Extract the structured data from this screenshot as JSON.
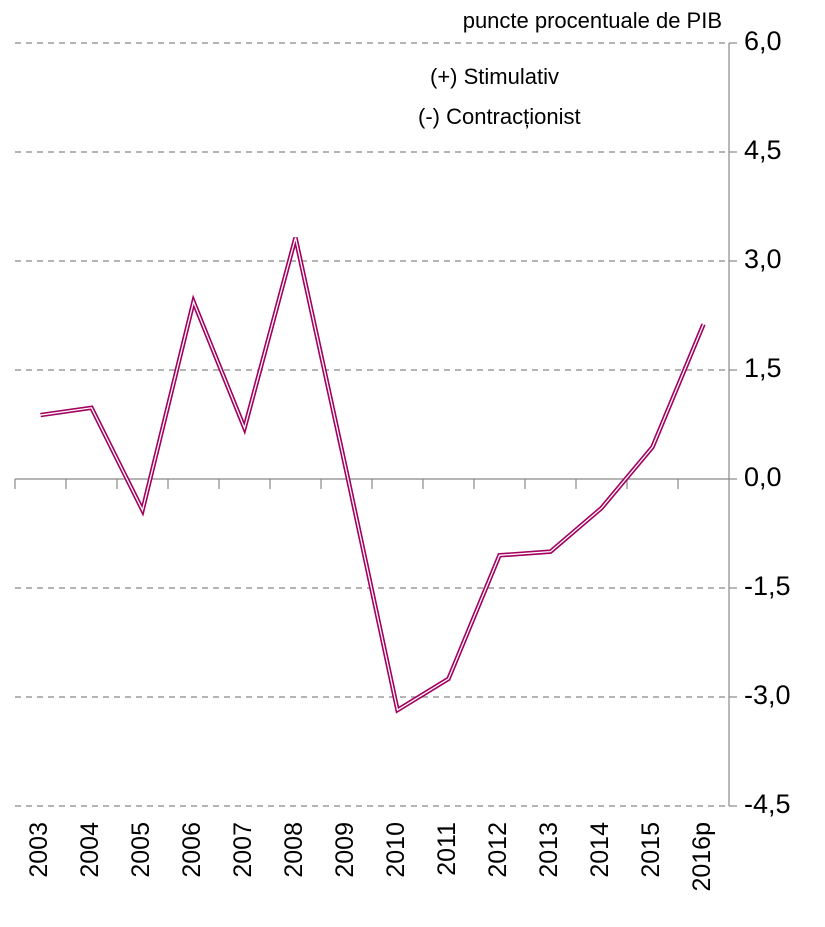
{
  "chart_data": {
    "type": "line",
    "annotations": [
      "puncte procentuale de PIB",
      "(+) Stimulativ",
      "(-) Contracționist"
    ],
    "categories": [
      "2003",
      "2004",
      "2005",
      "2006",
      "2007",
      "2008",
      "2009",
      "2010",
      "2011",
      "2012",
      "2013",
      "2014",
      "2015",
      "2016p"
    ],
    "series": [
      {
        "color": "#a3005f",
        "values": [
          0.88,
          0.98,
          -0.43,
          2.44,
          0.7,
          3.32,
          0.1,
          -3.18,
          -2.75,
          -1.05,
          -1.0,
          -0.4,
          0.44,
          2.13
        ]
      }
    ],
    "ylim": [
      -4.5,
      6.0
    ],
    "yticks": [
      {
        "value": -4.5,
        "label": "-4,5"
      },
      {
        "value": -3.0,
        "label": "-3,0"
      },
      {
        "value": -1.5,
        "label": "-1,5"
      },
      {
        "value": 0,
        "label": "0,0"
      },
      {
        "value": 1.5,
        "label": "1,5"
      },
      {
        "value": 3.0,
        "label": "3,0"
      },
      {
        "value": 4.5,
        "label": "4,5"
      },
      {
        "value": 6.0,
        "label": "6,0"
      }
    ],
    "grid": true
  }
}
